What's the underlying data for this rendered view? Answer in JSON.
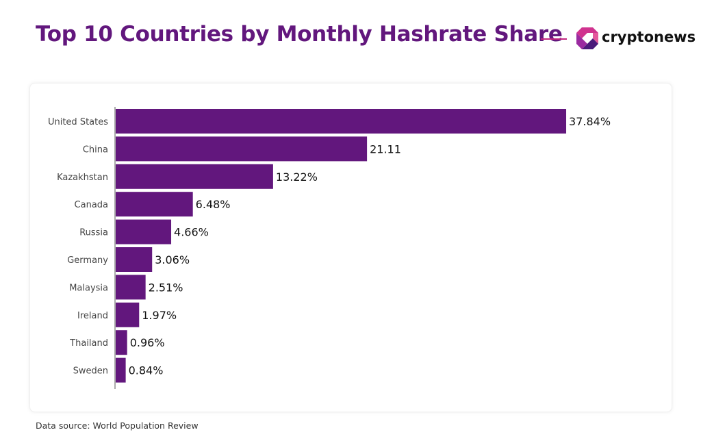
{
  "header": {
    "title": "Top 10 Countries by Monthly Hashrate Share",
    "logo_text": "cryptonews"
  },
  "footer": {
    "source": "Data source: World Population Review"
  },
  "colors": {
    "bar": "#62177d",
    "title": "#62177d",
    "accent": "#c2267f"
  },
  "chart_data": {
    "type": "bar",
    "orientation": "horizontal",
    "title": "Top 10 Countries by Monthly Hashrate Share",
    "categories": [
      "United States",
      "China",
      "Kazakhstan",
      "Canada",
      "Russia",
      "Germany",
      "Malaysia",
      "Ireland",
      "Thailand",
      "Sweden"
    ],
    "values": [
      37.84,
      21.11,
      13.22,
      6.48,
      4.66,
      3.06,
      2.51,
      1.97,
      0.96,
      0.84
    ],
    "labels": [
      "37.84%",
      "21.11",
      "13.22%",
      "6.48%",
      "4.66%",
      "3.06%",
      "2.51%",
      "1.97%",
      "0.96%",
      "0.84%"
    ],
    "xlabel": "",
    "ylabel": "",
    "xlim": [
      0,
      38
    ],
    "grid": false
  }
}
